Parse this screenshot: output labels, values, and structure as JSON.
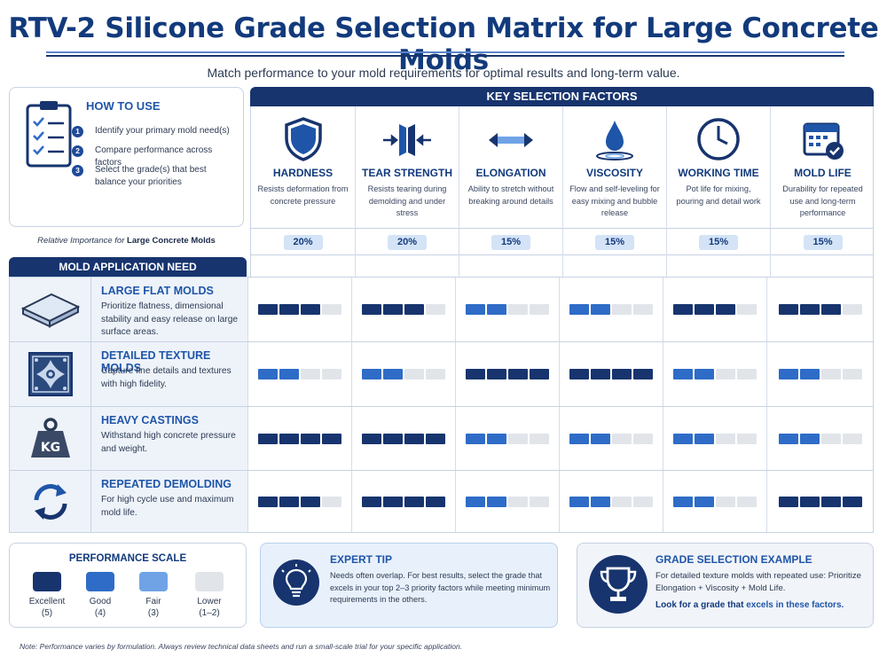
{
  "header": {
    "title": "RTV-2 Silicone Grade Selection Matrix for Large Concrete Molds",
    "subtitle": "Match performance to your mold requirements for optimal results and long-term value."
  },
  "how_to_use": {
    "title": "HOW TO USE",
    "steps": [
      {
        "num": "1",
        "text": "Identify your primary mold need(s)"
      },
      {
        "num": "2",
        "text": "Compare performance across factors"
      },
      {
        "num": "3",
        "text": "Select the grade(s) that best balance your priorities"
      }
    ]
  },
  "key_factors": {
    "title": "KEY SELECTION FACTORS",
    "factors": [
      {
        "name": "HARDNESS",
        "desc": "Resists deformation from concrete pressure",
        "importance": "20%",
        "icon": "shield-icon"
      },
      {
        "name": "TEAR STRENGTH",
        "desc": "Resists tearing during demolding and under stress",
        "importance": "20%",
        "icon": "tear-strength-icon"
      },
      {
        "name": "ELONGATION",
        "desc": "Ability to stretch without breaking around details",
        "importance": "15%",
        "icon": "stretch-arrows-icon"
      },
      {
        "name": "VISCOSITY",
        "desc": "Flow and self-leveling for easy mixing and bubble release",
        "importance": "15%",
        "icon": "droplet-icon"
      },
      {
        "name": "WORKING TIME",
        "desc": "Pot life for mixing, pouring and detail work",
        "importance": "15%",
        "icon": "clock-icon"
      },
      {
        "name": "MOLD LIFE",
        "desc": "Durability for repeated use and long-term performance",
        "importance": "15%",
        "icon": "calendar-check-icon"
      }
    ]
  },
  "importance": {
    "label_prefix": "Relative Importance for ",
    "label_bold": "Large Concrete Molds"
  },
  "applications": {
    "title": "MOLD APPLICATION NEED",
    "rows": [
      {
        "name": "LARGE FLAT MOLDS",
        "desc": "Prioritize flatness, dimensional stability and easy release on large surface areas.",
        "icon": "flat-slab-icon",
        "ratings": [
          4,
          4,
          3,
          3,
          4,
          4
        ]
      },
      {
        "name": "DETAILED TEXTURE MOLDS",
        "desc": "Capture fine details and textures with high fidelity.",
        "icon": "ornate-tile-icon",
        "ratings": [
          3,
          3,
          5,
          5,
          3,
          3
        ]
      },
      {
        "name": "HEAVY CASTINGS",
        "desc": "Withstand high concrete pressure and weight.",
        "icon": "kg-weight-icon",
        "weight_label": "KG",
        "ratings": [
          5,
          5,
          3,
          3,
          3,
          3
        ]
      },
      {
        "name": "REPEATED DEMOLDING",
        "desc": "For high cycle use and maximum mold life.",
        "icon": "cycle-arrows-icon",
        "ratings": [
          4,
          5,
          3,
          3,
          3,
          5
        ]
      }
    ]
  },
  "performance_scale": {
    "title": "PERFORMANCE SCALE",
    "levels": [
      {
        "label": "Excellent",
        "score": "(5)",
        "color": "#17346e"
      },
      {
        "label": "Good",
        "score": "(4)",
        "color": "#2e6cc7"
      },
      {
        "label": "Fair",
        "score": "(3)",
        "color": "#6fa3e6"
      },
      {
        "label": "Lower",
        "score": "(1–2)",
        "color": "#e1e5ea"
      }
    ]
  },
  "expert_tip": {
    "title": "EXPERT TIP",
    "text": "Needs often overlap. For best results, select the grade that excels in your top 2–3 priority factors while meeting minimum requirements in the others."
  },
  "grade_example": {
    "title": "GRADE SELECTION EXAMPLE",
    "text": "For detailed texture molds with repeated use: Prioritize Elongation + Viscosity + Mold Life.",
    "look_prefix": "Look for a grade that ",
    "look_highlight": "excels in these factors."
  },
  "footnote": "Note: Performance varies by formulation. Always review technical data sheets and run a small-scale trial for your specific application.",
  "colors": {
    "excellent": "#17346e",
    "good": "#2e6cc7",
    "fair": "#6fa3e6",
    "lower": "#e1e5ea"
  }
}
